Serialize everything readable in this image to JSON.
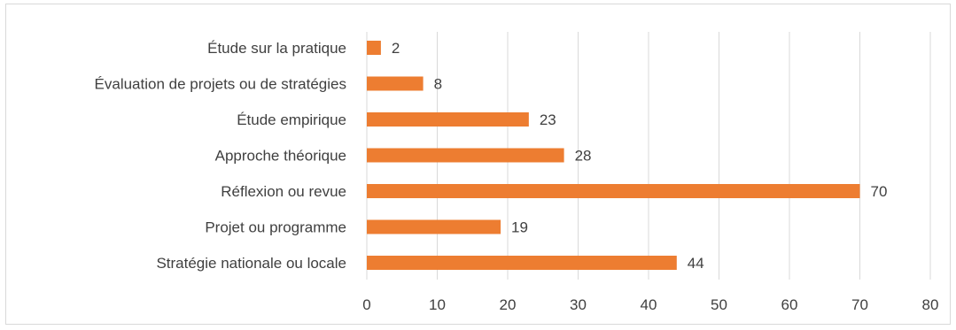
{
  "chart_data": {
    "type": "bar",
    "orientation": "horizontal",
    "categories": [
      "Étude sur la pratique",
      "Évaluation de projets ou de stratégies",
      "Étude empirique",
      "Approche théorique",
      "Réflexion ou revue",
      "Projet ou programme",
      "Stratégie nationale ou locale"
    ],
    "values": [
      2,
      8,
      23,
      28,
      70,
      19,
      44
    ],
    "x_ticks": [
      "0",
      "10",
      "20",
      "30",
      "40",
      "50",
      "60",
      "70",
      "80"
    ],
    "xlim": [
      0,
      80
    ],
    "grid": "vertical",
    "data_labels": true,
    "title": "",
    "xlabel": "",
    "ylabel": "",
    "colors": {
      "bar": "#ED7D31",
      "grid": "#D9D9D9",
      "text": "#404040"
    }
  }
}
